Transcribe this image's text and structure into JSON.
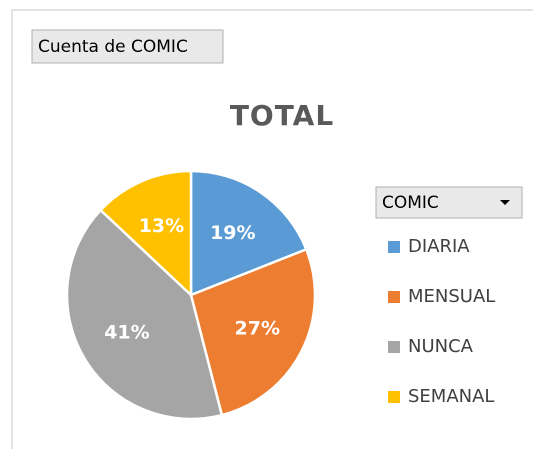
{
  "chart_data": {
    "type": "pie",
    "title": "TOTAL",
    "value_field": "Cuenta de COMIC",
    "legend_title": "COMIC",
    "legend": "right",
    "categories": [
      "DIARIA",
      "MENSUAL",
      "NUNCA",
      "SEMANAL"
    ],
    "values": [
      19,
      27,
      41,
      13
    ],
    "value_labels": [
      "19%",
      "27%",
      "41%",
      "13%"
    ],
    "colors": [
      "#5b9bd5",
      "#ed7d31",
      "#a5a5a5",
      "#ffc000"
    ]
  }
}
